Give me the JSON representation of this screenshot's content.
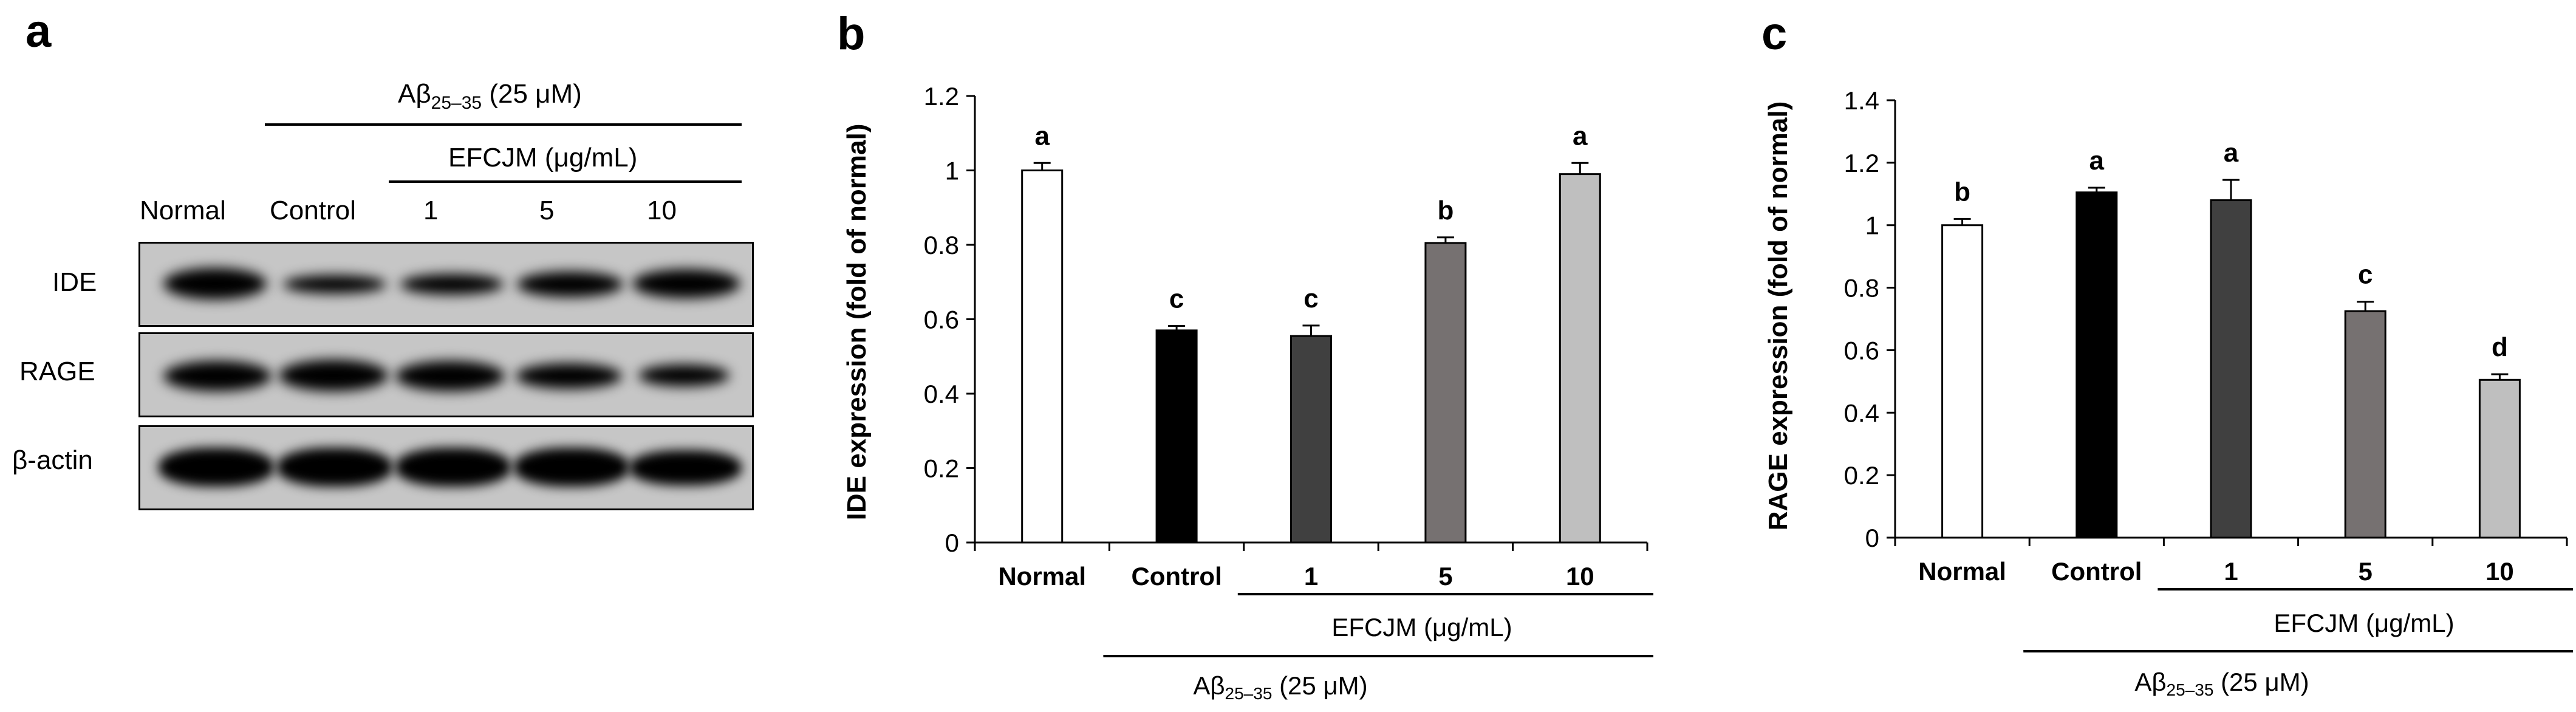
{
  "panel_a": {
    "letter": "a",
    "treatment": {
      "prefix": "Aβ",
      "sub": "25–35",
      "suffix": " (25 μM)"
    },
    "extract_label": "EFCJM (μg/mL)",
    "lane_labels": [
      "Normal",
      "Control",
      "1",
      "5",
      "10"
    ],
    "row_labels": [
      "IDE",
      "RAGE",
      "β-actin"
    ],
    "band_intensity": {
      "IDE": [
        0.9,
        0.45,
        0.55,
        0.75,
        0.92
      ],
      "RAGE": [
        0.9,
        0.95,
        0.9,
        0.75,
        0.55
      ],
      "β-actin": [
        0.95,
        0.95,
        0.95,
        0.95,
        0.92
      ]
    }
  },
  "chart_data": [
    {
      "panel": "b",
      "type": "bar",
      "categories": [
        "Normal",
        "Control",
        "1",
        "5",
        "10"
      ],
      "values": [
        1.0,
        0.57,
        0.555,
        0.805,
        0.99
      ],
      "errors": [
        0.02,
        0.012,
        0.028,
        0.015,
        0.03
      ],
      "letters": [
        "a",
        "c",
        "c",
        "b",
        "a"
      ],
      "colors": [
        "#ffffff",
        "#000000",
        "#404040",
        "#767171",
        "#bfbfbf"
      ],
      "ylabel": "IDE expression (fold of normal)",
      "ylim": [
        0,
        1.2
      ],
      "yticks": [
        0,
        0.2,
        0.4,
        0.6,
        0.8,
        1,
        1.2
      ],
      "ytick_labels": [
        "0",
        "0.2",
        "0.4",
        "0.6",
        "0.8",
        "1",
        "1.2"
      ],
      "group_label": "EFCJM (μg/mL)",
      "treatment": {
        "prefix": "Aβ",
        "sub": "25–35",
        "suffix": " (25 μM)"
      }
    },
    {
      "panel": "c",
      "type": "bar",
      "categories": [
        "Normal",
        "Control",
        "1",
        "5",
        "10"
      ],
      "values": [
        1.0,
        1.105,
        1.08,
        0.725,
        0.505
      ],
      "errors": [
        0.02,
        0.015,
        0.065,
        0.03,
        0.018
      ],
      "letters": [
        "b",
        "a",
        "a",
        "c",
        "d"
      ],
      "colors": [
        "#ffffff",
        "#000000",
        "#404040",
        "#767171",
        "#bfbfbf"
      ],
      "ylabel": "RAGE expression (fold of normal)",
      "ylim": [
        0,
        1.4
      ],
      "yticks": [
        0,
        0.2,
        0.4,
        0.6,
        0.8,
        1,
        1.2,
        1.4
      ],
      "ytick_labels": [
        "0",
        "0.2",
        "0.4",
        "0.6",
        "0.8",
        "1",
        "1.2",
        "1.4"
      ],
      "group_label": "EFCJM (μg/mL)",
      "treatment": {
        "prefix": "Aβ",
        "sub": "25–35",
        "suffix": " (25 μM)"
      }
    }
  ]
}
